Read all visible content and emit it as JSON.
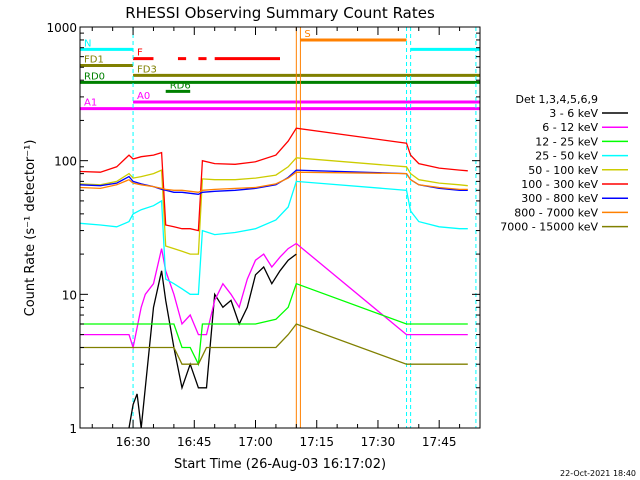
{
  "chart_data": {
    "type": "line",
    "title": "RHESSI Observing Summary Count Rates",
    "xlabel": "Start Time (26-Aug-03 16:17:02)",
    "ylabel": "Count Rate (s⁻¹ detector⁻¹)",
    "ylog": true,
    "ylim": [
      1,
      1000
    ],
    "xlim": [
      "16:17",
      "17:55"
    ],
    "x_ticks": [
      "16:30",
      "16:45",
      "17:00",
      "17:15",
      "17:30",
      "17:45"
    ],
    "y_ticks": [
      "1",
      "10",
      "100",
      "1000"
    ],
    "timestamp": "22-Oct-2021 18:40",
    "legend_title": "Det 1,3,4,5,6,9",
    "legend_position": "right",
    "series": [
      {
        "name": "3 - 6 keV",
        "color": "#000000",
        "x": [
          "16:29",
          "16:30",
          "16:31",
          "16:32",
          "16:33",
          "16:35",
          "16:37",
          "16:38",
          "16:40",
          "16:42",
          "16:44",
          "16:46",
          "16:48",
          "16:50",
          "16:52",
          "16:54",
          "16:56",
          "16:58",
          "17:00",
          "17:02",
          "17:04",
          "17:06",
          "17:08",
          "17:10"
        ],
        "values": [
          1,
          1.5,
          1.8,
          1,
          2,
          8,
          15,
          9,
          4,
          2,
          3,
          2,
          2,
          10,
          8,
          9,
          6,
          8,
          14,
          16,
          12,
          15,
          18,
          20
        ]
      },
      {
        "name": "6 - 12 keV",
        "color": "#ff00ff",
        "x": [
          "16:17",
          "16:23",
          "16:27",
          "16:29",
          "16:30",
          "16:32",
          "16:33",
          "16:35",
          "16:37",
          "16:38",
          "16:40",
          "16:42",
          "16:44",
          "16:46",
          "16:48",
          "16:50",
          "16:52",
          "16:54",
          "16:56",
          "16:58",
          "17:00",
          "17:02",
          "17:04",
          "17:06",
          "17:08",
          "17:10",
          "17:37",
          "17:40",
          "17:45",
          "17:50",
          "17:52"
        ],
        "values": [
          5,
          5,
          5,
          5,
          4,
          8,
          10,
          12,
          22,
          15,
          10,
          6,
          7,
          5,
          5,
          9,
          12,
          10,
          8,
          13,
          18,
          20,
          16,
          19,
          22,
          24,
          5,
          5,
          5,
          5,
          5
        ]
      },
      {
        "name": "12 - 25 keV",
        "color": "#00ff00",
        "x": [
          "16:17",
          "16:20",
          "16:25",
          "16:29",
          "16:30",
          "16:32",
          "16:35",
          "16:38",
          "16:40",
          "16:42",
          "16:44",
          "16:46",
          "16:47",
          "16:50",
          "16:55",
          "17:00",
          "17:05",
          "17:08",
          "17:10",
          "17:37",
          "17:40",
          "17:45",
          "17:50",
          "17:52"
        ],
        "values": [
          6,
          6,
          6,
          6,
          6,
          6,
          6,
          6,
          6,
          4,
          4,
          3,
          6,
          6,
          6,
          6,
          6.5,
          8,
          12,
          6,
          6,
          6,
          6,
          6
        ]
      },
      {
        "name": "25 - 50 keV",
        "color": "#00ffff",
        "x": [
          "16:17",
          "16:22",
          "16:26",
          "16:29",
          "16:30",
          "16:32",
          "16:35",
          "16:37",
          "16:38",
          "16:40",
          "16:42",
          "16:44",
          "16:46",
          "16:47",
          "16:50",
          "16:55",
          "17:00",
          "17:05",
          "17:08",
          "17:10",
          "17:37",
          "17:38",
          "17:40",
          "17:45",
          "17:50",
          "17:52"
        ],
        "values": [
          34,
          33,
          32,
          35,
          40,
          43,
          46,
          50,
          13,
          12,
          11,
          10,
          10,
          30,
          28,
          29,
          31,
          36,
          45,
          70,
          60,
          42,
          35,
          32,
          31,
          31
        ]
      },
      {
        "name": "50 - 100 keV",
        "color": "#cccc00",
        "x": [
          "16:17",
          "16:22",
          "16:26",
          "16:29",
          "16:30",
          "16:32",
          "16:35",
          "16:37",
          "16:38",
          "16:40",
          "16:42",
          "16:44",
          "16:46",
          "16:47",
          "16:50",
          "16:55",
          "17:00",
          "17:05",
          "17:08",
          "17:10",
          "17:37",
          "17:38",
          "17:40",
          "17:45",
          "17:50",
          "17:52"
        ],
        "values": [
          67,
          66,
          70,
          80,
          74,
          76,
          80,
          85,
          23,
          22,
          21,
          20,
          20,
          73,
          72,
          72,
          74,
          78,
          90,
          105,
          90,
          80,
          72,
          68,
          66,
          65
        ]
      },
      {
        "name": "100 - 300 keV",
        "color": "#ff0000",
        "x": [
          "16:17",
          "16:22",
          "16:26",
          "16:29",
          "16:30",
          "16:32",
          "16:35",
          "16:37",
          "16:38",
          "16:40",
          "16:42",
          "16:44",
          "16:46",
          "16:47",
          "16:50",
          "16:55",
          "17:00",
          "17:05",
          "17:08",
          "17:10",
          "17:37",
          "17:38",
          "17:40",
          "17:45",
          "17:50",
          "17:52"
        ],
        "values": [
          83,
          82,
          90,
          110,
          103,
          107,
          110,
          115,
          33,
          32,
          31,
          31,
          30,
          100,
          95,
          94,
          98,
          110,
          140,
          175,
          135,
          110,
          95,
          88,
          85,
          84
        ]
      },
      {
        "name": "300 - 800 keV",
        "color": "#0000ff",
        "x": [
          "16:17",
          "16:22",
          "16:26",
          "16:29",
          "16:30",
          "16:32",
          "16:35",
          "16:37",
          "16:38",
          "16:40",
          "16:42",
          "16:44",
          "16:46",
          "16:47",
          "16:50",
          "16:55",
          "17:00",
          "17:05",
          "17:08",
          "17:10",
          "17:37",
          "17:38",
          "17:40",
          "17:45",
          "17:50",
          "17:52"
        ],
        "values": [
          66,
          65,
          68,
          76,
          70,
          67,
          64,
          61,
          60,
          58,
          58,
          57,
          56,
          58,
          59,
          60,
          62,
          66,
          75,
          85,
          80,
          72,
          66,
          62,
          60,
          60
        ]
      },
      {
        "name": "800 - 7000 keV",
        "color": "#ff8000",
        "x": [
          "16:17",
          "16:22",
          "16:26",
          "16:29",
          "16:30",
          "16:32",
          "16:35",
          "16:37",
          "16:38",
          "16:40",
          "16:42",
          "16:44",
          "16:46",
          "16:47",
          "16:50",
          "16:55",
          "17:00",
          "17:05",
          "17:08",
          "17:10",
          "17:37",
          "17:38",
          "17:40",
          "17:45",
          "17:50",
          "17:52"
        ],
        "values": [
          63,
          62,
          66,
          72,
          68,
          66,
          64,
          62,
          61,
          60,
          60,
          59,
          58,
          60,
          61,
          62,
          63,
          67,
          74,
          82,
          80,
          72,
          66,
          63,
          61,
          61
        ]
      },
      {
        "name": "7000 - 15000 keV",
        "color": "#808000",
        "x": [
          "16:17",
          "16:22",
          "16:27",
          "16:29",
          "16:30",
          "16:32",
          "16:35",
          "16:38",
          "16:40",
          "16:42",
          "16:44",
          "16:46",
          "16:48",
          "16:50",
          "16:55",
          "17:00",
          "17:05",
          "17:08",
          "17:10",
          "17:37",
          "17:40",
          "17:45",
          "17:50",
          "17:52"
        ],
        "values": [
          4,
          4,
          4,
          4,
          4,
          4,
          4,
          4,
          4,
          3,
          3,
          3,
          4,
          4,
          4,
          4,
          4,
          5,
          6,
          3,
          3,
          3,
          3,
          3
        ]
      }
    ],
    "flags": [
      {
        "label": "N",
        "color": "#00ffff",
        "y_level": 680,
        "segments": [
          [
            "16:17",
            "16:30"
          ],
          [
            "17:38",
            "17:55"
          ]
        ]
      },
      {
        "label": "S",
        "color": "#ff8000",
        "y_level": 800,
        "segments": [
          [
            "17:11",
            "17:37"
          ]
        ]
      },
      {
        "label": "F",
        "color": "#ff0000",
        "y_level": 580,
        "segments": [
          [
            "16:30",
            "16:35"
          ],
          [
            "16:41",
            "16:43"
          ],
          [
            "16:46",
            "16:48"
          ],
          [
            "16:50",
            "17:06"
          ]
        ]
      },
      {
        "label": "FD1",
        "color": "#808000",
        "y_level": 515,
        "segments": [
          [
            "16:17",
            "16:30"
          ]
        ]
      },
      {
        "label": "FD3",
        "color": "#808000",
        "y_level": 435,
        "segments": [
          [
            "16:30",
            "17:55"
          ]
        ]
      },
      {
        "label": "RD0",
        "color": "#008000",
        "y_level": 385,
        "segments": [
          [
            "16:17",
            "17:55"
          ]
        ]
      },
      {
        "label": "RD6",
        "color": "#008000",
        "y_level": 330,
        "segments": [
          [
            "16:38",
            "16:44"
          ]
        ]
      },
      {
        "label": "A0",
        "color": "#ff00ff",
        "y_level": 275,
        "segments": [
          [
            "16:30",
            "17:55"
          ]
        ]
      },
      {
        "label": "A1",
        "color": "#ff00ff",
        "y_level": 245,
        "segments": [
          [
            "16:17",
            "17:55"
          ]
        ]
      }
    ],
    "vlines": [
      {
        "x": "16:17",
        "color": "#00ffff",
        "style": "dash"
      },
      {
        "x": "16:30",
        "color": "#00ffff",
        "style": "dash"
      },
      {
        "x": "17:10",
        "color": "#ff8000",
        "style": "solid"
      },
      {
        "x": "17:11",
        "color": "#ff8000",
        "style": "solid"
      },
      {
        "x": "17:37",
        "color": "#00ffff",
        "style": "dash"
      },
      {
        "x": "17:38",
        "color": "#00ffff",
        "style": "dash"
      },
      {
        "x": "17:54",
        "color": "#00ffff",
        "style": "dash"
      }
    ],
    "grid": false
  }
}
